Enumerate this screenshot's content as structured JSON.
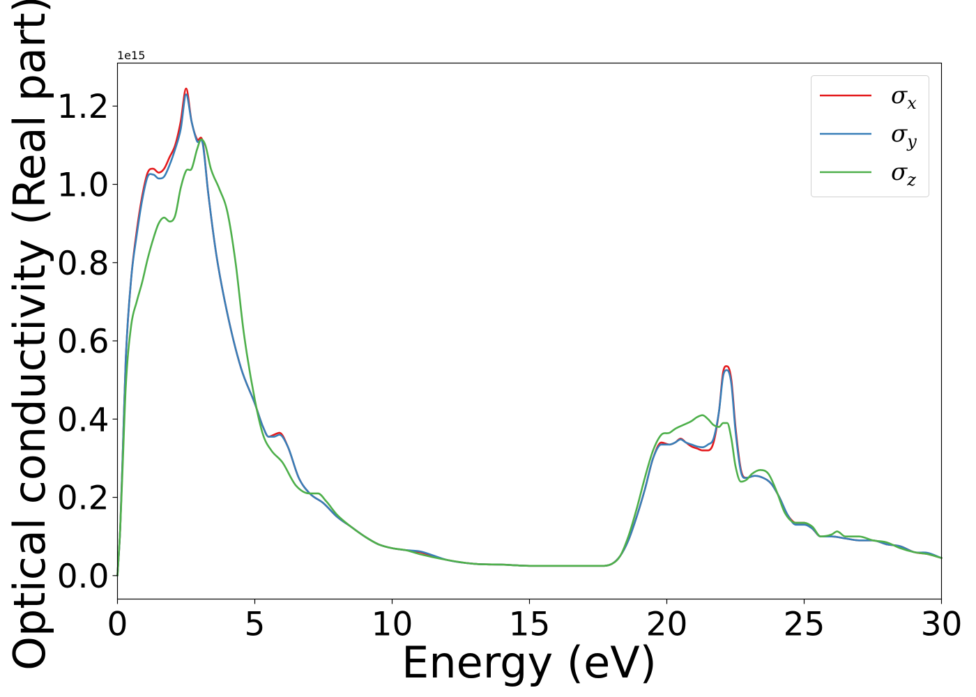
{
  "chart_data": {
    "type": "line",
    "xlabel": "Energy (eV)",
    "ylabel": "Optical conductivity (Real part)",
    "y_offset_label": "1e15",
    "xlim": [
      0,
      30
    ],
    "ylim": [
      -0.06,
      1.31
    ],
    "x_ticks": [
      0,
      5,
      10,
      15,
      20,
      25,
      30
    ],
    "x_tick_labels": [
      "0",
      "5",
      "10",
      "15",
      "20",
      "25",
      "30"
    ],
    "y_ticks": [
      0.0,
      0.2,
      0.4,
      0.6,
      0.8,
      1.0,
      1.2
    ],
    "y_tick_labels": [
      "0.0",
      "0.2",
      "0.4",
      "0.6",
      "0.8",
      "1.0",
      "1.2"
    ],
    "grid": false,
    "legend_position": "top-right",
    "series": [
      {
        "name": "σx",
        "symbol": "σ",
        "subscript": "x",
        "color": "#e41a1c",
        "x": [
          0,
          0.1,
          0.2,
          0.3,
          0.5,
          0.7,
          0.9,
          1.1,
          1.3,
          1.5,
          1.7,
          1.9,
          2.1,
          2.3,
          2.5,
          2.7,
          2.9,
          3.1,
          3.3,
          3.6,
          4.0,
          4.5,
          5.0,
          5.3,
          5.5,
          5.7,
          5.9,
          6.2,
          6.6,
          7.0,
          7.5,
          8.0,
          8.5,
          9.0,
          9.5,
          10.0,
          10.5,
          11.0,
          12.0,
          13.0,
          14.0,
          15.0,
          16.0,
          17.0,
          17.5,
          18.0,
          18.3,
          18.6,
          18.9,
          19.2,
          19.5,
          19.8,
          20.1,
          20.3,
          20.5,
          20.7,
          20.9,
          21.1,
          21.3,
          21.5,
          21.7,
          21.9,
          22.05,
          22.2,
          22.35,
          22.5,
          22.7,
          22.9,
          23.2,
          23.5,
          23.8,
          24.1,
          24.4,
          24.7,
          25.0,
          25.3,
          25.6,
          26.0,
          26.5,
          27.0,
          27.5,
          28.0,
          28.5,
          29.0,
          29.5,
          30.0
        ],
        "y": [
          0.0,
          0.12,
          0.33,
          0.55,
          0.76,
          0.88,
          0.97,
          1.03,
          1.04,
          1.03,
          1.04,
          1.07,
          1.1,
          1.16,
          1.245,
          1.16,
          1.115,
          1.11,
          0.98,
          0.82,
          0.67,
          0.53,
          0.44,
          0.38,
          0.355,
          0.36,
          0.365,
          0.33,
          0.25,
          0.21,
          0.185,
          0.15,
          0.125,
          0.1,
          0.08,
          0.07,
          0.065,
          0.06,
          0.04,
          0.03,
          0.028,
          0.025,
          0.025,
          0.025,
          0.025,
          0.03,
          0.05,
          0.09,
          0.15,
          0.22,
          0.3,
          0.34,
          0.335,
          0.34,
          0.35,
          0.34,
          0.33,
          0.325,
          0.32,
          0.32,
          0.34,
          0.42,
          0.52,
          0.535,
          0.5,
          0.38,
          0.27,
          0.25,
          0.255,
          0.25,
          0.235,
          0.2,
          0.155,
          0.135,
          0.135,
          0.12,
          0.1,
          0.1,
          0.095,
          0.09,
          0.09,
          0.08,
          0.075,
          0.06,
          0.055,
          0.045
        ]
      },
      {
        "name": "σy",
        "symbol": "σ",
        "subscript": "y",
        "color": "#377eb8",
        "x": [
          0,
          0.1,
          0.2,
          0.3,
          0.5,
          0.7,
          0.9,
          1.1,
          1.3,
          1.5,
          1.7,
          1.9,
          2.1,
          2.3,
          2.5,
          2.7,
          2.9,
          3.1,
          3.3,
          3.6,
          4.0,
          4.5,
          5.0,
          5.3,
          5.5,
          5.7,
          5.9,
          6.2,
          6.6,
          7.0,
          7.5,
          8.0,
          8.5,
          9.0,
          9.5,
          10.0,
          10.5,
          11.0,
          12.0,
          13.0,
          14.0,
          15.0,
          16.0,
          17.0,
          17.5,
          18.0,
          18.3,
          18.6,
          18.9,
          19.2,
          19.5,
          19.8,
          20.1,
          20.3,
          20.5,
          20.7,
          20.9,
          21.1,
          21.3,
          21.5,
          21.7,
          21.9,
          22.05,
          22.2,
          22.35,
          22.5,
          22.7,
          22.9,
          23.2,
          23.5,
          23.8,
          24.1,
          24.4,
          24.7,
          25.0,
          25.3,
          25.6,
          26.0,
          26.5,
          27.0,
          27.5,
          28.0,
          28.5,
          29.0,
          29.5,
          30.0
        ],
        "y": [
          0.0,
          0.12,
          0.33,
          0.55,
          0.76,
          0.87,
          0.96,
          1.02,
          1.025,
          1.015,
          1.02,
          1.05,
          1.09,
          1.14,
          1.23,
          1.16,
          1.11,
          1.105,
          0.98,
          0.82,
          0.67,
          0.53,
          0.44,
          0.38,
          0.355,
          0.355,
          0.36,
          0.33,
          0.25,
          0.21,
          0.185,
          0.15,
          0.125,
          0.1,
          0.08,
          0.07,
          0.065,
          0.062,
          0.04,
          0.03,
          0.028,
          0.025,
          0.025,
          0.025,
          0.025,
          0.03,
          0.05,
          0.09,
          0.15,
          0.22,
          0.3,
          0.335,
          0.335,
          0.34,
          0.348,
          0.34,
          0.335,
          0.33,
          0.328,
          0.335,
          0.35,
          0.42,
          0.51,
          0.525,
          0.49,
          0.37,
          0.265,
          0.25,
          0.255,
          0.25,
          0.235,
          0.2,
          0.155,
          0.13,
          0.13,
          0.12,
          0.1,
          0.1,
          0.095,
          0.09,
          0.09,
          0.08,
          0.075,
          0.06,
          0.058,
          0.045
        ]
      },
      {
        "name": "σz",
        "symbol": "σ",
        "subscript": "z",
        "color": "#4daf4a",
        "x": [
          0,
          0.1,
          0.2,
          0.3,
          0.5,
          0.7,
          0.9,
          1.1,
          1.3,
          1.5,
          1.7,
          1.9,
          2.1,
          2.3,
          2.5,
          2.7,
          2.9,
          3.05,
          3.2,
          3.4,
          3.7,
          4.0,
          4.3,
          4.6,
          5.0,
          5.3,
          5.6,
          6.0,
          6.5,
          7.0,
          7.3,
          7.6,
          8.0,
          8.5,
          9.0,
          9.5,
          10.0,
          10.5,
          11.0,
          12.0,
          13.0,
          14.0,
          15.0,
          16.0,
          17.0,
          17.5,
          18.0,
          18.3,
          18.6,
          18.9,
          19.2,
          19.5,
          19.8,
          20.1,
          20.3,
          20.6,
          20.9,
          21.1,
          21.3,
          21.5,
          21.7,
          21.9,
          22.05,
          22.2,
          22.35,
          22.5,
          22.7,
          22.9,
          23.1,
          23.4,
          23.7,
          24.0,
          24.3,
          24.7,
          25.0,
          25.3,
          25.6,
          26.0,
          26.2,
          26.5,
          27.0,
          27.5,
          28.0,
          28.5,
          29.0,
          29.5,
          30.0
        ],
        "y": [
          0.0,
          0.12,
          0.3,
          0.48,
          0.64,
          0.7,
          0.75,
          0.81,
          0.86,
          0.9,
          0.915,
          0.905,
          0.92,
          0.99,
          1.035,
          1.04,
          1.09,
          1.115,
          1.1,
          1.04,
          0.99,
          0.93,
          0.8,
          0.62,
          0.45,
          0.36,
          0.32,
          0.29,
          0.23,
          0.21,
          0.21,
          0.19,
          0.155,
          0.125,
          0.1,
          0.08,
          0.07,
          0.065,
          0.055,
          0.04,
          0.03,
          0.028,
          0.025,
          0.025,
          0.025,
          0.025,
          0.03,
          0.05,
          0.1,
          0.17,
          0.25,
          0.32,
          0.36,
          0.365,
          0.375,
          0.385,
          0.395,
          0.405,
          0.41,
          0.4,
          0.385,
          0.38,
          0.39,
          0.39,
          0.35,
          0.28,
          0.24,
          0.245,
          0.26,
          0.27,
          0.26,
          0.215,
          0.16,
          0.135,
          0.135,
          0.125,
          0.1,
          0.105,
          0.113,
          0.1,
          0.1,
          0.09,
          0.085,
          0.07,
          0.06,
          0.055,
          0.045
        ]
      }
    ]
  }
}
